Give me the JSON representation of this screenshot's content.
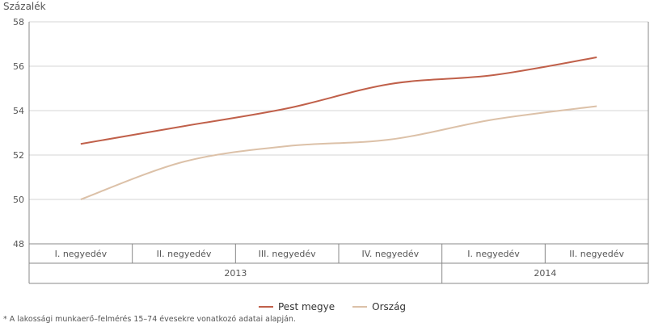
{
  "chart_data": {
    "type": "line",
    "ylabel": "Százalék",
    "ylim": [
      48,
      58
    ],
    "yticks": [
      48,
      50,
      52,
      54,
      56,
      58
    ],
    "categories": [
      "I. negyedév",
      "II. negyedév",
      "III. negyedév",
      "IV. negyedév",
      "I. negyedév",
      "II. negyedév"
    ],
    "groups": [
      {
        "label": "2013",
        "span": 4
      },
      {
        "label": "2014",
        "span": 2
      }
    ],
    "series": [
      {
        "name": "Pest megye",
        "color": "#c0604a",
        "values": [
          52.5,
          53.3,
          54.1,
          55.2,
          55.6,
          56.4
        ]
      },
      {
        "name": "Ország",
        "color": "#dcc1a8",
        "values": [
          50.0,
          51.7,
          52.4,
          52.7,
          53.6,
          54.2
        ]
      }
    ],
    "grid": true,
    "legend_position": "bottom"
  },
  "footnote": "* A lakossági munkaerő–felmérés 15–74 évesekre vonatkozó adatai alapján."
}
